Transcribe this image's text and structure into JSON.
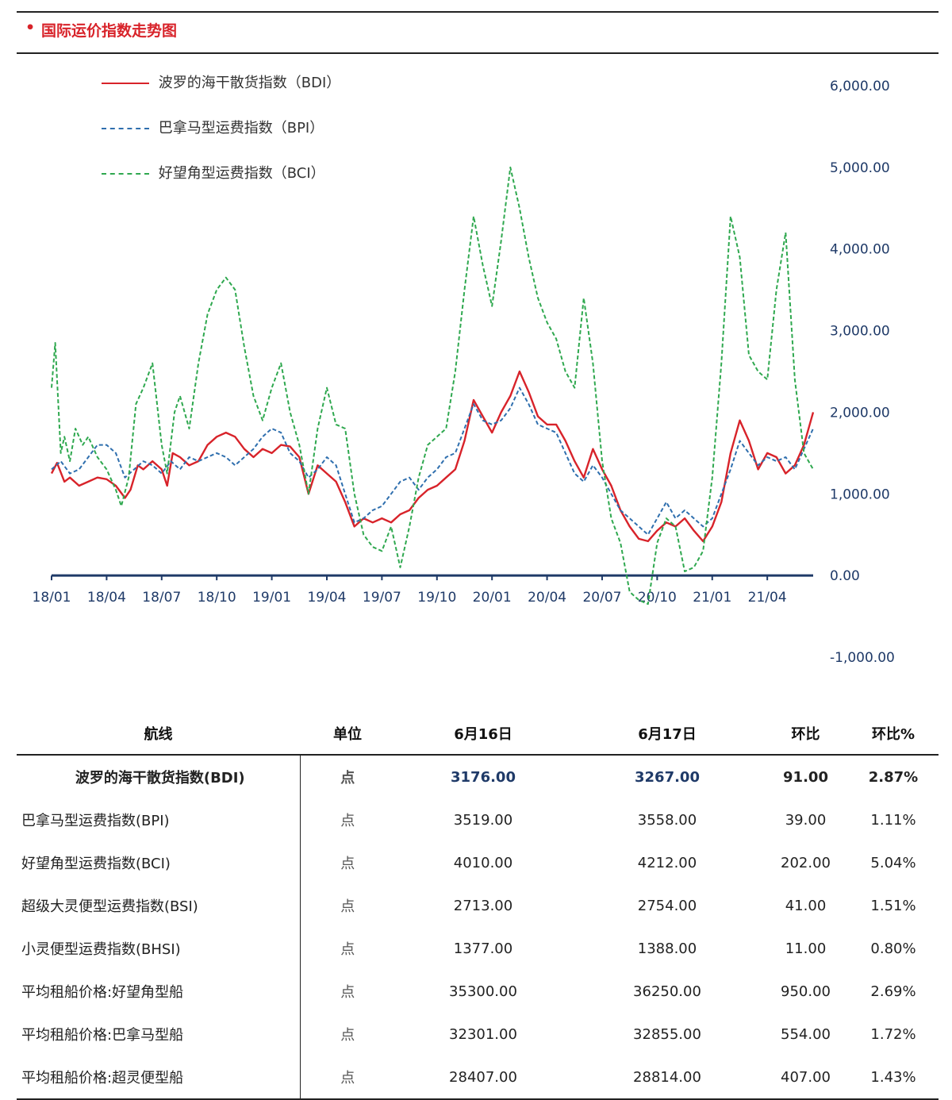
{
  "header": {
    "title": "国际运价指数走势图"
  },
  "chart_data": {
    "type": "line",
    "x_ticks": [
      "18/01",
      "18/04",
      "18/07",
      "18/10",
      "19/01",
      "19/04",
      "19/07",
      "19/10",
      "20/01",
      "20/04",
      "20/07",
      "20/10",
      "21/01",
      "21/04"
    ],
    "y_ticks": [
      "6,000.00",
      "5,000.00",
      "4,000.00",
      "3,000.00",
      "2,000.00",
      "1,000.00",
      "0.00",
      "-1,000.00"
    ],
    "ylim": [
      -1000,
      6000
    ],
    "x_range": [
      0,
      41.5
    ],
    "y_axis_position": "right",
    "legend_position": "top-left",
    "series": [
      {
        "name": "波罗的海干散货指数（BDI）",
        "color": "#d8232a",
        "style": "solid",
        "points": [
          [
            0,
            1250
          ],
          [
            0.3,
            1380
          ],
          [
            0.7,
            1150
          ],
          [
            1,
            1200
          ],
          [
            1.5,
            1100
          ],
          [
            2,
            1150
          ],
          [
            2.5,
            1200
          ],
          [
            3,
            1180
          ],
          [
            3.5,
            1100
          ],
          [
            4,
            950
          ],
          [
            4.3,
            1050
          ],
          [
            4.7,
            1350
          ],
          [
            5,
            1300
          ],
          [
            5.5,
            1400
          ],
          [
            6,
            1300
          ],
          [
            6.3,
            1100
          ],
          [
            6.6,
            1500
          ],
          [
            7,
            1450
          ],
          [
            7.5,
            1350
          ],
          [
            8,
            1400
          ],
          [
            8.5,
            1600
          ],
          [
            9,
            1700
          ],
          [
            9.5,
            1750
          ],
          [
            10,
            1700
          ],
          [
            10.5,
            1550
          ],
          [
            11,
            1450
          ],
          [
            11.5,
            1550
          ],
          [
            12,
            1500
          ],
          [
            12.5,
            1600
          ],
          [
            13,
            1580
          ],
          [
            13.5,
            1450
          ],
          [
            14,
            1000
          ],
          [
            14.5,
            1350
          ],
          [
            15,
            1250
          ],
          [
            15.5,
            1150
          ],
          [
            16,
            900
          ],
          [
            16.5,
            600
          ],
          [
            17,
            700
          ],
          [
            17.5,
            650
          ],
          [
            18,
            700
          ],
          [
            18.5,
            650
          ],
          [
            19,
            750
          ],
          [
            19.5,
            800
          ],
          [
            20,
            950
          ],
          [
            20.5,
            1050
          ],
          [
            21,
            1100
          ],
          [
            21.5,
            1200
          ],
          [
            22,
            1300
          ],
          [
            22.5,
            1650
          ],
          [
            23,
            2150
          ],
          [
            23.5,
            1950
          ],
          [
            24,
            1750
          ],
          [
            24.5,
            2000
          ],
          [
            25,
            2200
          ],
          [
            25.5,
            2500
          ],
          [
            26,
            2250
          ],
          [
            26.5,
            1950
          ],
          [
            27,
            1850
          ],
          [
            27.5,
            1850
          ],
          [
            28,
            1650
          ],
          [
            28.5,
            1400
          ],
          [
            29,
            1200
          ],
          [
            29.5,
            1550
          ],
          [
            30,
            1300
          ],
          [
            30.5,
            1100
          ],
          [
            31,
            800
          ],
          [
            31.5,
            600
          ],
          [
            32,
            450
          ],
          [
            32.5,
            420
          ],
          [
            33,
            550
          ],
          [
            33.5,
            650
          ],
          [
            34,
            600
          ],
          [
            34.5,
            700
          ],
          [
            35,
            550
          ],
          [
            35.5,
            420
          ],
          [
            36,
            600
          ],
          [
            36.5,
            900
          ],
          [
            37,
            1500
          ],
          [
            37.5,
            1900
          ],
          [
            38,
            1650
          ],
          [
            38.5,
            1300
          ],
          [
            39,
            1500
          ],
          [
            39.5,
            1450
          ],
          [
            40,
            1250
          ],
          [
            40.5,
            1350
          ],
          [
            41,
            1600
          ],
          [
            41.5,
            2000
          ]
        ]
      },
      {
        "name": "巴拿马型运费指数（BPI）",
        "color": "#2f6fae",
        "style": "dashed",
        "points": [
          [
            0,
            1300
          ],
          [
            0.5,
            1400
          ],
          [
            1,
            1250
          ],
          [
            1.5,
            1300
          ],
          [
            2,
            1450
          ],
          [
            2.5,
            1600
          ],
          [
            3,
            1600
          ],
          [
            3.5,
            1500
          ],
          [
            4,
            1200
          ],
          [
            4.5,
            1300
          ],
          [
            5,
            1400
          ],
          [
            5.5,
            1350
          ],
          [
            6,
            1250
          ],
          [
            6.5,
            1400
          ],
          [
            7,
            1300
          ],
          [
            7.5,
            1450
          ],
          [
            8,
            1400
          ],
          [
            8.5,
            1450
          ],
          [
            9,
            1500
          ],
          [
            9.5,
            1450
          ],
          [
            10,
            1350
          ],
          [
            10.5,
            1450
          ],
          [
            11,
            1550
          ],
          [
            11.5,
            1700
          ],
          [
            12,
            1800
          ],
          [
            12.5,
            1750
          ],
          [
            13,
            1500
          ],
          [
            13.5,
            1400
          ],
          [
            14,
            1200
          ],
          [
            14.5,
            1300
          ],
          [
            15,
            1450
          ],
          [
            15.5,
            1350
          ],
          [
            16,
            1000
          ],
          [
            16.5,
            650
          ],
          [
            17,
            700
          ],
          [
            17.5,
            800
          ],
          [
            18,
            850
          ],
          [
            18.5,
            1000
          ],
          [
            19,
            1150
          ],
          [
            19.5,
            1200
          ],
          [
            20,
            1050
          ],
          [
            20.5,
            1200
          ],
          [
            21,
            1300
          ],
          [
            21.5,
            1450
          ],
          [
            22,
            1500
          ],
          [
            22.5,
            1800
          ],
          [
            23,
            2100
          ],
          [
            23.5,
            1900
          ],
          [
            24,
            1850
          ],
          [
            24.5,
            1900
          ],
          [
            25,
            2050
          ],
          [
            25.5,
            2300
          ],
          [
            26,
            2100
          ],
          [
            26.5,
            1850
          ],
          [
            27,
            1800
          ],
          [
            27.5,
            1750
          ],
          [
            28,
            1500
          ],
          [
            28.5,
            1250
          ],
          [
            29,
            1150
          ],
          [
            29.5,
            1350
          ],
          [
            30,
            1200
          ],
          [
            30.5,
            1000
          ],
          [
            31,
            800
          ],
          [
            31.5,
            700
          ],
          [
            32,
            600
          ],
          [
            32.5,
            500
          ],
          [
            33,
            700
          ],
          [
            33.5,
            900
          ],
          [
            34,
            700
          ],
          [
            34.5,
            800
          ],
          [
            35,
            700
          ],
          [
            35.5,
            600
          ],
          [
            36,
            700
          ],
          [
            36.5,
            1000
          ],
          [
            37,
            1300
          ],
          [
            37.5,
            1650
          ],
          [
            38,
            1500
          ],
          [
            38.5,
            1350
          ],
          [
            39,
            1450
          ],
          [
            39.5,
            1400
          ],
          [
            40,
            1450
          ],
          [
            40.5,
            1300
          ],
          [
            41,
            1550
          ],
          [
            41.5,
            1800
          ]
        ]
      },
      {
        "name": "好望角型运费指数（BCI）",
        "color": "#2fa84f",
        "style": "dashed",
        "points": [
          [
            0,
            2300
          ],
          [
            0.2,
            2850
          ],
          [
            0.5,
            1500
          ],
          [
            0.7,
            1700
          ],
          [
            1,
            1400
          ],
          [
            1.3,
            1800
          ],
          [
            1.7,
            1600
          ],
          [
            2,
            1700
          ],
          [
            2.5,
            1450
          ],
          [
            3,
            1300
          ],
          [
            3.5,
            1050
          ],
          [
            3.8,
            850
          ],
          [
            4.2,
            1200
          ],
          [
            4.6,
            2100
          ],
          [
            5,
            2300
          ],
          [
            5.5,
            2600
          ],
          [
            6,
            1600
          ],
          [
            6.3,
            1250
          ],
          [
            6.7,
            2000
          ],
          [
            7,
            2200
          ],
          [
            7.5,
            1800
          ],
          [
            8,
            2600
          ],
          [
            8.5,
            3200
          ],
          [
            9,
            3500
          ],
          [
            9.5,
            3650
          ],
          [
            10,
            3500
          ],
          [
            10.5,
            2800
          ],
          [
            11,
            2200
          ],
          [
            11.5,
            1900
          ],
          [
            12,
            2300
          ],
          [
            12.5,
            2600
          ],
          [
            13,
            2000
          ],
          [
            13.5,
            1600
          ],
          [
            14,
            1000
          ],
          [
            14.5,
            1800
          ],
          [
            15,
            2300
          ],
          [
            15.5,
            1850
          ],
          [
            16,
            1800
          ],
          [
            16.5,
            1000
          ],
          [
            17,
            500
          ],
          [
            17.5,
            350
          ],
          [
            18,
            300
          ],
          [
            18.5,
            600
          ],
          [
            19,
            100
          ],
          [
            19.5,
            600
          ],
          [
            20,
            1200
          ],
          [
            20.5,
            1600
          ],
          [
            21,
            1700
          ],
          [
            21.5,
            1800
          ],
          [
            22,
            2500
          ],
          [
            22.5,
            3500
          ],
          [
            23,
            4400
          ],
          [
            23.5,
            3800
          ],
          [
            24,
            3300
          ],
          [
            24.5,
            4100
          ],
          [
            25,
            5000
          ],
          [
            25.5,
            4500
          ],
          [
            26,
            3900
          ],
          [
            26.5,
            3400
          ],
          [
            27,
            3100
          ],
          [
            27.5,
            2900
          ],
          [
            28,
            2500
          ],
          [
            28.5,
            2300
          ],
          [
            29,
            3400
          ],
          [
            29.5,
            2600
          ],
          [
            30,
            1400
          ],
          [
            30.5,
            700
          ],
          [
            31,
            400
          ],
          [
            31.5,
            -200
          ],
          [
            32,
            -300
          ],
          [
            32.5,
            -350
          ],
          [
            33,
            400
          ],
          [
            33.5,
            700
          ],
          [
            34,
            600
          ],
          [
            34.5,
            50
          ],
          [
            35,
            100
          ],
          [
            35.5,
            300
          ],
          [
            36,
            1200
          ],
          [
            36.5,
            2600
          ],
          [
            37,
            4400
          ],
          [
            37.5,
            3900
          ],
          [
            38,
            2700
          ],
          [
            38.5,
            2500
          ],
          [
            39,
            2400
          ],
          [
            39.5,
            3500
          ],
          [
            40,
            4200
          ],
          [
            40.5,
            2400
          ],
          [
            41,
            1500
          ],
          [
            41.5,
            1300
          ]
        ]
      }
    ],
    "note_series_extended": true
  },
  "table": {
    "headers": [
      "航线",
      "单位",
      "6月16日",
      "6月17日",
      "环比",
      "环比%"
    ],
    "rows": [
      [
        "波罗的海干散货指数(BDI)",
        "点",
        "3176.00",
        "3267.00",
        "91.00",
        "2.87%"
      ],
      [
        "巴拿马型运费指数(BPI)",
        "点",
        "3519.00",
        "3558.00",
        "39.00",
        "1.11%"
      ],
      [
        "好望角型运费指数(BCI)",
        "点",
        "4010.00",
        "4212.00",
        "202.00",
        "5.04%"
      ],
      [
        "超级大灵便型运费指数(BSI)",
        "点",
        "2713.00",
        "2754.00",
        "41.00",
        "1.51%"
      ],
      [
        "小灵便型运费指数(BHSI)",
        "点",
        "1377.00",
        "1388.00",
        "11.00",
        "0.80%"
      ],
      [
        "平均租船价格:好望角型船",
        "点",
        "35300.00",
        "36250.00",
        "950.00",
        "2.69%"
      ],
      [
        "平均租船价格:巴拿马型船",
        "点",
        "32301.00",
        "32855.00",
        "554.00",
        "1.72%"
      ],
      [
        "平均租船价格:超灵便型船",
        "点",
        "28407.00",
        "28814.00",
        "407.00",
        "1.43%"
      ]
    ]
  }
}
